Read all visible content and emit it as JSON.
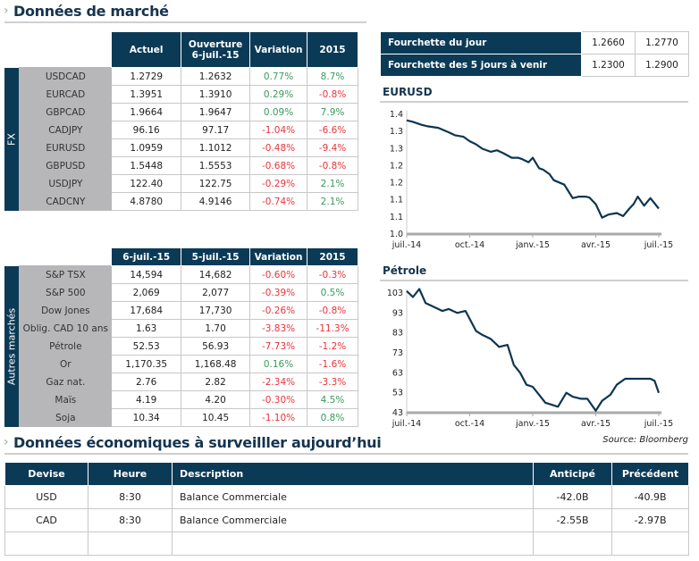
{
  "market": {
    "title": "Données de marché"
  },
  "fx": {
    "group_label": "FX",
    "headers": [
      "Actuel",
      "Ouverture",
      "6-juil.-15",
      "Variation",
      "2015"
    ],
    "rows": [
      {
        "name": "USDCAD",
        "a": "1.2729",
        "b": "1.2632",
        "var": "0.77%",
        "ytd": "8.7%"
      },
      {
        "name": "EURCAD",
        "a": "1.3951",
        "b": "1.3910",
        "var": "0.29%",
        "ytd": "-0.8%"
      },
      {
        "name": "GBPCAD",
        "a": "1.9664",
        "b": "1.9647",
        "var": "0.09%",
        "ytd": "7.9%"
      },
      {
        "name": "CADJPY",
        "a": "96.16",
        "b": "97.17",
        "var": "-1.04%",
        "ytd": "-6.6%"
      },
      {
        "name": "EURUSD",
        "a": "1.0959",
        "b": "1.1012",
        "var": "-0.48%",
        "ytd": "-9.4%"
      },
      {
        "name": "GBPUSD",
        "a": "1.5448",
        "b": "1.5553",
        "var": "-0.68%",
        "ytd": "-0.8%"
      },
      {
        "name": "USDJPY",
        "a": "122.40",
        "b": "122.75",
        "var": "-0.29%",
        "ytd": "2.1%"
      },
      {
        "name": "CADCNY",
        "a": "4.8780",
        "b": "4.9146",
        "var": "-0.74%",
        "ytd": "2.1%"
      }
    ]
  },
  "other": {
    "group_label": "Autres marchés",
    "headers": [
      "6-juil.-15",
      "5-juil.-15",
      "Variation",
      "2015"
    ],
    "rows": [
      {
        "name": "S&P TSX",
        "a": "14,594",
        "b": "14,682",
        "var": "-0.60%",
        "ytd": "-0.3%"
      },
      {
        "name": "S&P 500",
        "a": "2,069",
        "b": "2,077",
        "var": "-0.39%",
        "ytd": "0.5%"
      },
      {
        "name": "Dow Jones",
        "a": "17,684",
        "b": "17,730",
        "var": "-0.26%",
        "ytd": "-0.8%"
      },
      {
        "name": "Oblig. CAD 10 ans",
        "a": "1.63",
        "b": "1.70",
        "var": "-3.83%",
        "ytd": "-11.3%"
      },
      {
        "name": "Pétrole",
        "a": "52.53",
        "b": "56.93",
        "var": "-7.73%",
        "ytd": "-1.2%"
      },
      {
        "name": "Or",
        "a": "1,170.35",
        "b": "1,168.48",
        "var": "0.16%",
        "ytd": "-1.6%"
      },
      {
        "name": "Gaz nat.",
        "a": "2.76",
        "b": "2.82",
        "var": "-2.34%",
        "ytd": "-3.3%"
      },
      {
        "name": "Maïs",
        "a": "4.19",
        "b": "4.20",
        "var": "-0.30%",
        "ytd": "4.5%"
      },
      {
        "name": "Soja",
        "a": "10.34",
        "b": "10.45",
        "var": "-1.10%",
        "ytd": "0.8%"
      }
    ]
  },
  "ranges": [
    {
      "label": "Fourchette du jour",
      "low": "1.2660",
      "high": "1.2770"
    },
    {
      "label": "Fourchette des 5 jours à venir",
      "low": "1.2300",
      "high": "1.2900"
    }
  ],
  "colors": {
    "header": "#0b3a56",
    "positive": "#3a9a5a",
    "negative": "#e8353a",
    "line": "#0d3550"
  },
  "chart_data": [
    {
      "type": "line",
      "title": "EURUSD",
      "ylim": [
        1.0,
        1.4
      ],
      "yticks": [
        "1.4",
        "1.3",
        "1.3",
        "1.2",
        "1.2",
        "1.1",
        "1.1",
        "1.0"
      ],
      "xticks": [
        "juil.-14",
        "oct.-14",
        "janv.-15",
        "avr.-15",
        "juil.-15"
      ],
      "x": [
        0,
        0.3,
        0.7,
        1,
        1.5,
        2,
        2.3,
        2.7,
        3,
        3.3,
        3.6,
        4,
        4.3,
        4.6,
        5,
        5.3,
        5.5,
        5.8,
        6,
        6.3,
        6.5,
        6.8,
        7,
        7.5,
        7.9,
        8.2,
        8.5,
        8.7,
        9,
        9.3,
        9.6,
        10,
        10.3,
        10.6,
        10.8,
        11,
        11.3,
        11.6,
        12
      ],
      "values": [
        1.38,
        1.375,
        1.365,
        1.36,
        1.355,
        1.34,
        1.33,
        1.325,
        1.31,
        1.3,
        1.285,
        1.275,
        1.28,
        1.27,
        1.255,
        1.255,
        1.25,
        1.24,
        1.255,
        1.22,
        1.215,
        1.2,
        1.18,
        1.165,
        1.12,
        1.125,
        1.125,
        1.122,
        1.1,
        1.055,
        1.065,
        1.07,
        1.06,
        1.085,
        1.1,
        1.125,
        1.095,
        1.12,
        1.085
      ]
    },
    {
      "type": "line",
      "title": "Pétrole",
      "ylim": [
        43,
        103
      ],
      "yticks": [
        "103",
        "93",
        "83",
        "73",
        "63",
        "53",
        "43"
      ],
      "xticks": [
        "juil.-14",
        "oct.-14",
        "janv.-15",
        "avr.-15",
        "juil.-15"
      ],
      "x": [
        0,
        0.3,
        0.6,
        0.9,
        1.3,
        1.7,
        2,
        2.4,
        2.8,
        3,
        3.3,
        3.6,
        4,
        4.4,
        4.8,
        5.1,
        5.4,
        5.7,
        6,
        6.3,
        6.6,
        6.9,
        7.2,
        7.6,
        7.9,
        8.3,
        8.6,
        9,
        9.3,
        9.7,
        10,
        10.4,
        10.8,
        11.2,
        11.6,
        11.8,
        12
      ],
      "values": [
        104,
        101,
        105,
        98,
        96,
        94,
        95,
        93,
        94,
        90,
        84,
        82,
        80,
        76,
        77,
        67,
        63,
        57,
        56,
        52,
        48,
        47,
        46,
        53,
        51,
        50,
        50,
        44,
        49,
        52,
        57,
        60,
        60,
        60,
        60,
        59,
        53
      ]
    }
  ],
  "eco": {
    "title": "Données économiques à surveilller aujourd’hui",
    "source": "Source: Bloomberg",
    "headers": [
      "Devise",
      "Heure",
      "Description",
      "Anticipé",
      "Précédent"
    ],
    "rows": [
      {
        "devise": "USD",
        "heure": "8:30",
        "desc": "Balance Commerciale",
        "ant": "-42.0B",
        "prec": "-40.9B"
      },
      {
        "devise": "CAD",
        "heure": "8:30",
        "desc": "Balance Commerciale",
        "ant": "-2.55B",
        "prec": "-2.97B"
      }
    ]
  }
}
